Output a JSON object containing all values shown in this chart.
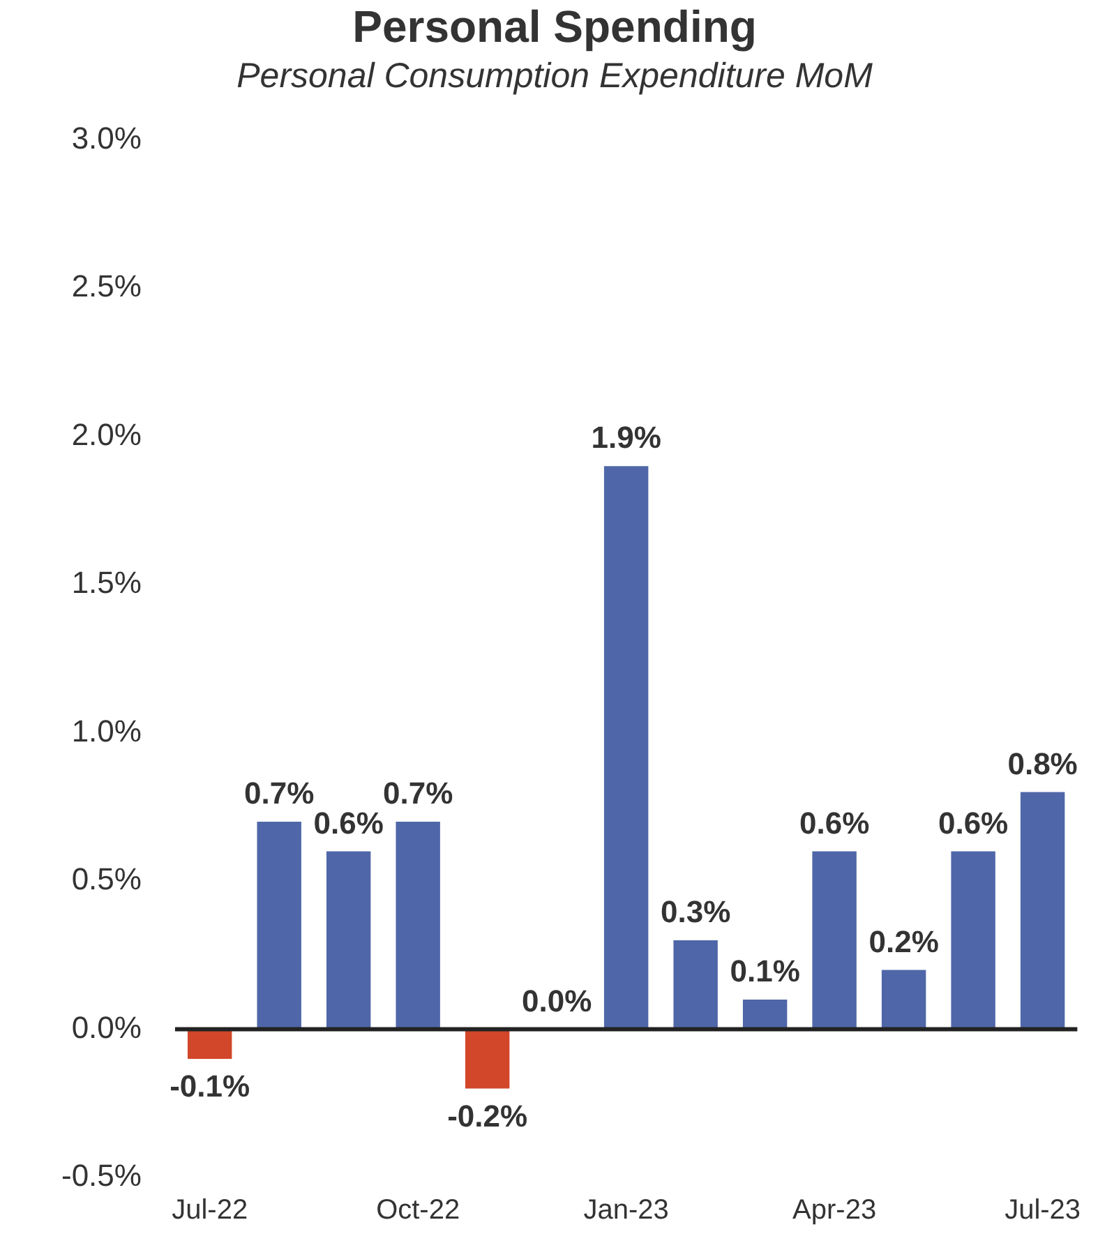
{
  "chart_data": {
    "type": "bar",
    "title": "Personal Spending",
    "subtitle": "Personal Consumption Expenditure MoM",
    "categories": [
      "Jul-22",
      null,
      null,
      "Oct-22",
      null,
      null,
      "Jan-23",
      null,
      null,
      "Apr-23",
      null,
      null,
      "Jul-23"
    ],
    "values": [
      -0.1,
      0.7,
      0.6,
      0.7,
      -0.2,
      0.0,
      1.9,
      0.3,
      0.1,
      0.6,
      0.2,
      0.6,
      0.8
    ],
    "colors": [
      "#d2472a",
      "#4f67a8",
      "#4f67a8",
      "#4f67a8",
      "#d2472a",
      "#4f67a8",
      "#4f67a8",
      "#4f67a8",
      "#4f67a8",
      "#4f67a8",
      "#4f67a8",
      "#4f67a8",
      "#4f67a8"
    ],
    "value_labels": [
      "-0.1%",
      "0.7%",
      "0.6%",
      "0.7%",
      "-0.2%",
      "0.0%",
      "1.9%",
      "0.3%",
      "0.1%",
      "0.6%",
      "0.2%",
      "0.6%",
      "0.8%"
    ],
    "ylim": [
      -0.5,
      3.0
    ],
    "yticks": [
      {
        "value": -0.5,
        "label": "-0.5%"
      },
      {
        "value": 0,
        "label": "0.0%"
      },
      {
        "value": 0.5,
        "label": "0.5%"
      },
      {
        "value": 1.0,
        "label": "1.0%"
      },
      {
        "value": 1.5,
        "label": "1.5%"
      },
      {
        "value": 2.0,
        "label": "2.0%"
      },
      {
        "value": 2.5,
        "label": "2.5%"
      },
      {
        "value": 3.0,
        "label": "3.0%"
      }
    ],
    "ref_lines": [
      {
        "axis": "y",
        "value": 0,
        "color": "#222222"
      }
    ],
    "grid": false,
    "legend": false
  }
}
